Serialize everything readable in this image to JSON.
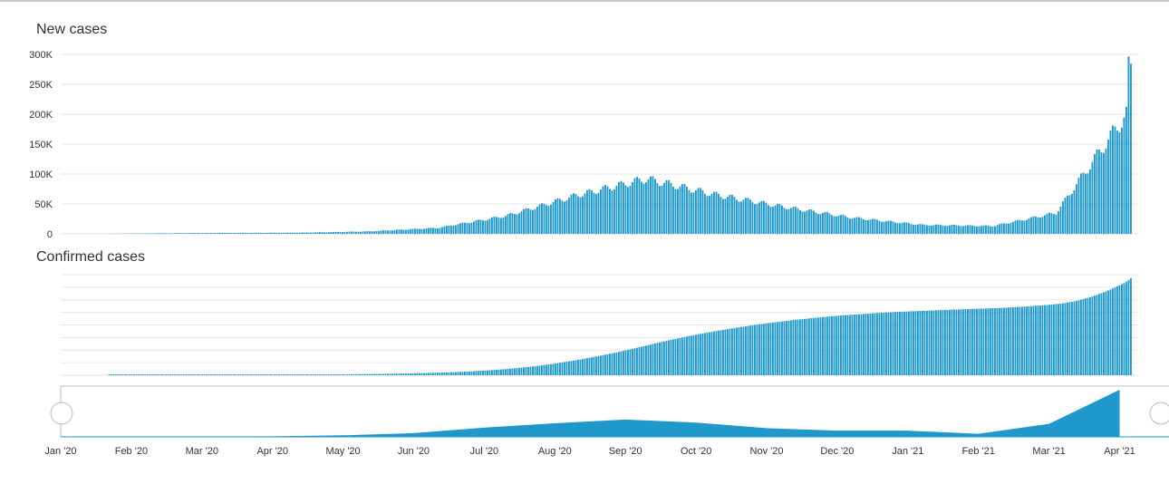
{
  "colors": {
    "bar": "#1f98cc",
    "grid": "#e6e6e6",
    "navigator_fill": "#1f98cc",
    "handle_border": "#bbbbbb"
  },
  "chart_data": [
    {
      "type": "bar",
      "title": "New cases",
      "xlabel": "",
      "ylabel": "",
      "ylim": [
        0,
        300000
      ],
      "y_ticks": [
        "0",
        "50K",
        "100K",
        "150K",
        "200K",
        "250K",
        "300K"
      ],
      "grid": true,
      "series": [
        {
          "x_start": "2020-01-22",
          "x_end": "2021-04-17",
          "monthly_levels": [
            {
              "month": "2020-01",
              "value": 0
            },
            {
              "month": "2020-02",
              "value": 1000
            },
            {
              "month": "2020-03",
              "value": 1500
            },
            {
              "month": "2020-04",
              "value": 2000
            },
            {
              "month": "2020-05",
              "value": 4000
            },
            {
              "month": "2020-06",
              "value": 10000
            },
            {
              "month": "2020-07",
              "value": 30000
            },
            {
              "month": "2020-08",
              "value": 64000
            },
            {
              "month": "2020-09",
              "value": 92000
            },
            {
              "month": "2020-10",
              "value": 66000
            },
            {
              "month": "2020-11",
              "value": 45000
            },
            {
              "month": "2020-12",
              "value": 27000
            },
            {
              "month": "2021-01",
              "value": 15000
            },
            {
              "month": "2021-02",
              "value": 13000
            },
            {
              "month": "2021-03",
              "value": 35000
            },
            {
              "month": "2021-04",
              "value": 200000
            }
          ],
          "peak": {
            "date": "2021-04-15",
            "value": 275000
          }
        }
      ]
    },
    {
      "type": "bar",
      "title": "Confirmed cases",
      "xlabel": "",
      "ylabel": "",
      "grid": true,
      "cumulative_of": "New cases",
      "y_ticks": []
    },
    {
      "type": "area",
      "role": "navigator",
      "monthly_values": [
        {
          "month": "Jan '20",
          "value": 0
        },
        {
          "month": "Feb '20",
          "value": 400
        },
        {
          "month": "Mar '20",
          "value": 600
        },
        {
          "month": "Apr '20",
          "value": 1000
        },
        {
          "month": "May '20",
          "value": 2500
        },
        {
          "month": "Jun '20",
          "value": 6000
        },
        {
          "month": "Jul '20",
          "value": 15000
        },
        {
          "month": "Aug '20",
          "value": 22000
        },
        {
          "month": "Sep '20",
          "value": 28000
        },
        {
          "month": "Oct '20",
          "value": 23000
        },
        {
          "month": "Nov '20",
          "value": 14000
        },
        {
          "month": "Dec '20",
          "value": 10000
        },
        {
          "month": "Jan '21",
          "value": 10000
        },
        {
          "month": "Feb '21",
          "value": 5000
        },
        {
          "month": "Mar '21",
          "value": 21000
        },
        {
          "month": "Apr '21",
          "value": 76000
        }
      ],
      "x_ticks": [
        "Jan '20",
        "Feb '20",
        "Mar '20",
        "Apr '20",
        "May '20",
        "Jun '20",
        "Jul '20",
        "Aug '20",
        "Sep '20",
        "Oct '20",
        "Nov '20",
        "Dec '20",
        "Jan '21",
        "Feb '21",
        "Mar '21",
        "Apr '21"
      ]
    }
  ]
}
